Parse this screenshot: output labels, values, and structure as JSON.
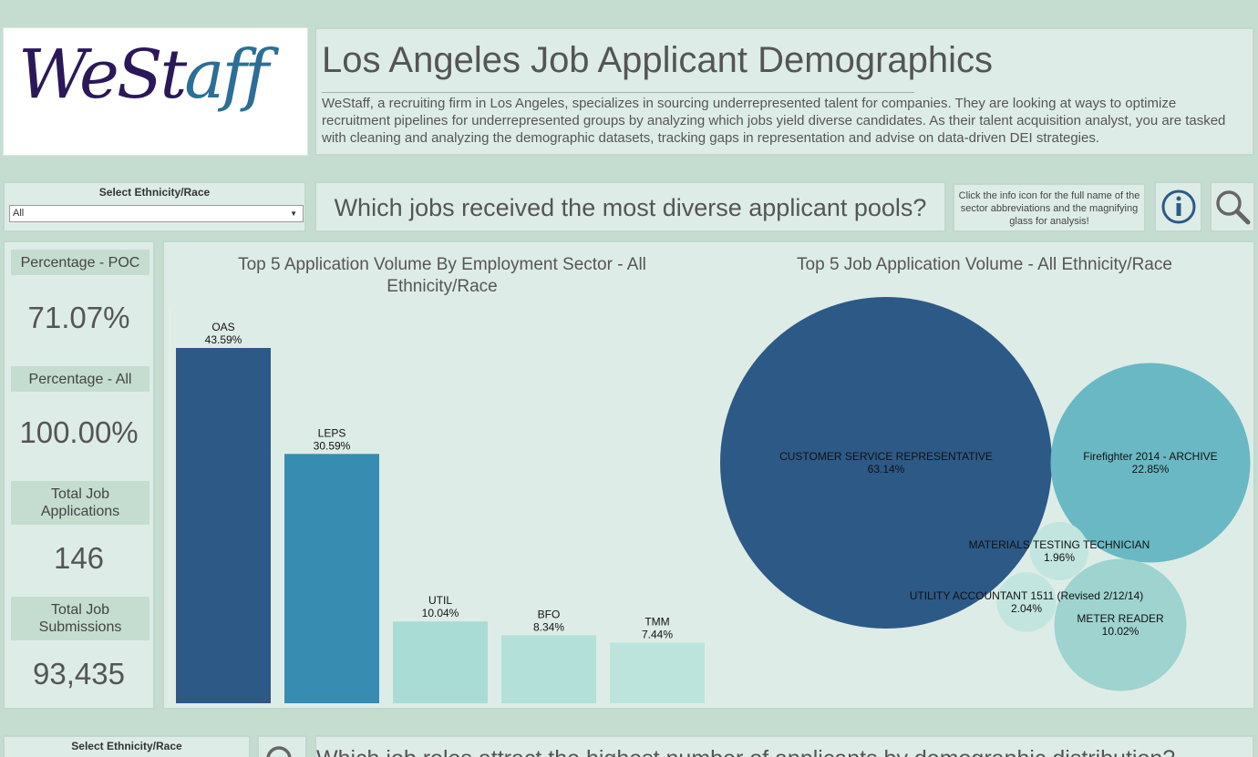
{
  "logo": {
    "text_a": "WeSt",
    "text_b": "aff"
  },
  "header": {
    "title": "Los Angeles Job Applicant Demographics",
    "description": "WeStaff, a recruiting firm in Los Angeles, specializes in sourcing underrepresented talent for companies. They are looking at ways to optimize recruitment pipelines for underrepresented groups by analyzing which jobs yield diverse candidates. As their talent acquisition analyst, you are tasked with cleaning and analyzing the demographic datasets, tracking gaps in representation and advise on data-driven DEI strategies."
  },
  "filter": {
    "label": "Select Ethnicity/Race",
    "value": "All"
  },
  "question": "Which jobs received the most diverse applicant pools?",
  "hint": "Click the info icon for the full name of the sector abbreviations and the magnifying glass for analysis!",
  "icons": {
    "info": "info-icon",
    "search": "magnifying-glass-icon"
  },
  "kpis": [
    {
      "label": "Percentage - POC",
      "value": "71.07%"
    },
    {
      "label": "Percentage - All",
      "value": "100.00%"
    },
    {
      "label": "Total Job Applications",
      "value": "146"
    },
    {
      "label": "Total Job Submissions",
      "value": "93,435"
    }
  ],
  "colors": {
    "dark_blue": "#2d5987",
    "mid_blue": "#378cb1",
    "teal": "#6ab8c4",
    "light_teal": "#9ed3cf",
    "pale_teal": "#b7e0d9",
    "panel_bg": "#deece7",
    "page_bg": "#c5ddd0"
  },
  "chart_data": [
    {
      "type": "bar",
      "title": "Top 5 Application Volume By Employment Sector -  All Ethnicity/Race",
      "categories": [
        "OAS",
        "LEPS",
        "UTIL",
        "BFO",
        "TMM"
      ],
      "values": [
        43.59,
        30.59,
        10.04,
        8.34,
        7.44
      ],
      "labels": [
        "43.59%",
        "30.59%",
        "10.04%",
        "8.34%",
        "7.44%"
      ],
      "colors": [
        "#2d5987",
        "#378cb1",
        "#a9dcd5",
        "#b4e0da",
        "#bce4dc"
      ],
      "ylim": [
        0,
        43.59
      ]
    },
    {
      "type": "bubble",
      "title": "Top 5 Job Application Volume - All Ethnicity/Race",
      "categories": [
        "CUSTOMER SERVICE REPRESENTATIVE",
        "Firefighter 2014 - ARCHIVE",
        "METER READER",
        "UTILITY ACCOUNTANT 1511 (Revised 2/12/14)",
        "MATERIALS TESTING TECHNICIAN"
      ],
      "values": [
        63.14,
        22.85,
        10.02,
        2.04,
        1.96
      ],
      "labels": [
        "63.14%",
        "22.85%",
        "10.02%",
        "2.04%",
        "1.96%"
      ],
      "colors": [
        "#2d5987",
        "#6ab8c4",
        "#9ed3cf",
        "#c2e6df",
        "#c2e6df"
      ]
    }
  ],
  "bottom": {
    "filter_label": "Select Ethnicity/Race",
    "question": "Which job roles attract the highest number of applicants by demographic distribution?"
  }
}
